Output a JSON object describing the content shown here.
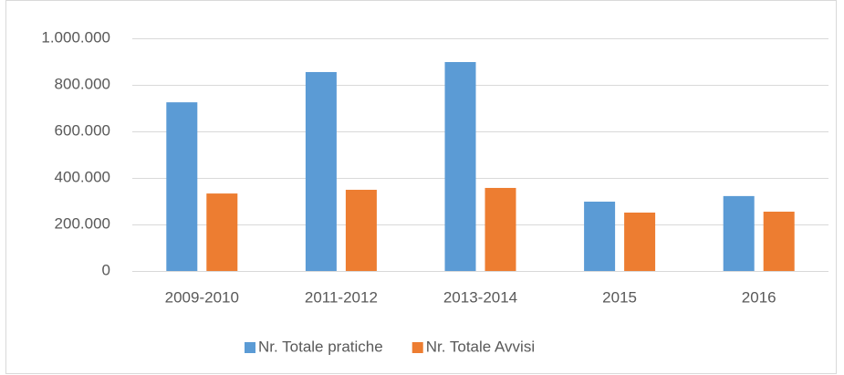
{
  "chart_data": {
    "type": "bar",
    "categories": [
      "2009-2010",
      "2011-2012",
      "2013-2014",
      "2015",
      "2016"
    ],
    "series": [
      {
        "name": "Nr. Totale pratiche",
        "color": "#5b9bd5",
        "values": [
          725000,
          855000,
          898000,
          298000,
          322000
        ]
      },
      {
        "name": "Nr. Totale Avvisi",
        "color": "#ed7d31",
        "values": [
          333000,
          349000,
          357000,
          251000,
          255000
        ]
      }
    ],
    "ylim": [
      0,
      1000000
    ],
    "yticks": [
      0,
      {
        "value": 200000,
        "label": "200.000"
      },
      {
        "value": 400000,
        "label": "400.000"
      },
      {
        "value": 600000,
        "label": "600.000"
      },
      {
        "value": 800000,
        "label": "800.000"
      },
      {
        "value": 1000000,
        "label": "1.000.000"
      }
    ],
    "grid": true,
    "legend": "bottom"
  }
}
